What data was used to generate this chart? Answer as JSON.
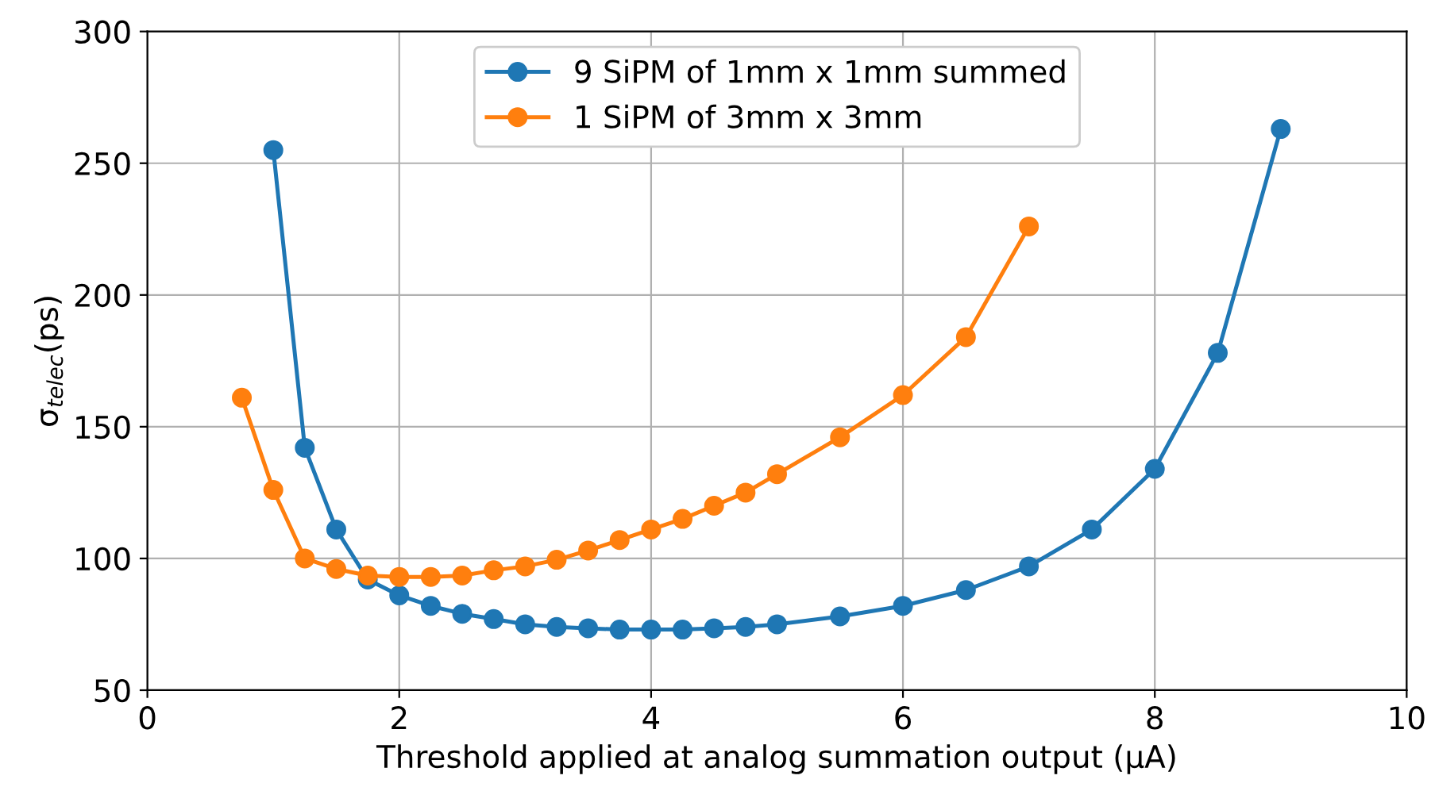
{
  "chart_data": {
    "type": "line",
    "xlabel": "Threshold applied at analog summation output (μA)",
    "ylabel": "σ$_{telec}$(ps)",
    "xlim": [
      0,
      10
    ],
    "ylim": [
      50,
      300
    ],
    "xticks": [
      0,
      2,
      4,
      6,
      8,
      10
    ],
    "yticks": [
      50,
      100,
      150,
      200,
      250,
      300
    ],
    "grid": true,
    "legend": "top",
    "marker": "circle",
    "line_style": "solid",
    "series": [
      {
        "name": "9 SiPM of 1mm x 1mm summed",
        "color": "#1f77b4",
        "x": [
          1,
          1.25,
          1.5,
          1.75,
          2,
          2.25,
          2.5,
          2.75,
          3,
          3.25,
          3.5,
          3.75,
          4,
          4.25,
          4.5,
          4.75,
          5,
          5.5,
          6,
          6.5,
          7,
          7.5,
          8,
          8.5,
          9
        ],
        "values": [
          255,
          142,
          111,
          92,
          86,
          82,
          79,
          77,
          75,
          74,
          73.5,
          73,
          73,
          73,
          73.5,
          74,
          75,
          78,
          82,
          88,
          97,
          111,
          134,
          178,
          263
        ]
      },
      {
        "name": "1 SiPM of 3mm x 3mm",
        "color": "#ff7f0e",
        "x": [
          0.75,
          1,
          1.25,
          1.5,
          1.75,
          2,
          2.25,
          2.5,
          2.75,
          3,
          3.25,
          3.5,
          3.75,
          4,
          4.25,
          4.5,
          4.75,
          5,
          5.5,
          6,
          6.5,
          7
        ],
        "values": [
          161,
          126,
          100,
          96,
          93.5,
          93,
          93,
          93.5,
          95.5,
          97,
          99.5,
          103,
          107,
          111,
          115,
          120,
          125,
          132,
          146,
          162,
          184,
          226
        ]
      }
    ]
  }
}
